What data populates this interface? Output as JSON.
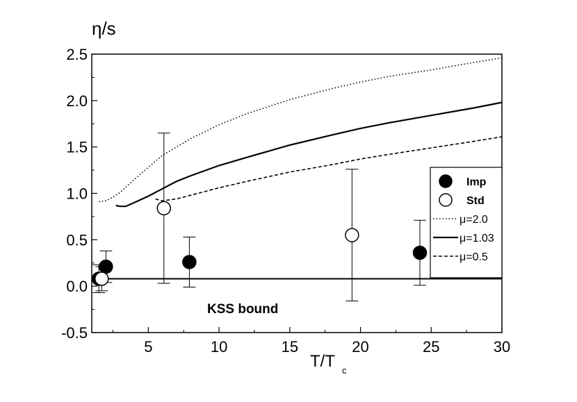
{
  "chart_data": {
    "type": "scatter",
    "xlabel": "T/T",
    "xlabel_sub": "c",
    "ylabel": "η/s",
    "xlim": [
      1,
      30
    ],
    "ylim": [
      -0.5,
      2.5
    ],
    "x_ticks": [
      "5",
      "10",
      "15",
      "20",
      "25",
      "30"
    ],
    "y_ticks": [
      "-0.5",
      "0.0",
      "0.5",
      "1.0",
      "1.5",
      "2.0",
      "2.5"
    ],
    "grid": false,
    "legend_placement": "right",
    "annotation": "KSS bound",
    "kss_bound_value": 0.08,
    "series": [
      {
        "name": "Imp",
        "kind": "points",
        "marker": "filled-circle",
        "points": [
          {
            "x": 1.5,
            "y": 0.08,
            "err": 0.15
          },
          {
            "x": 2.0,
            "y": 0.21,
            "err": 0.17
          },
          {
            "x": 7.9,
            "y": 0.26,
            "err": 0.27
          },
          {
            "x": 24.2,
            "y": 0.36,
            "err": 0.35
          }
        ]
      },
      {
        "name": "Std",
        "kind": "points",
        "marker": "open-circle",
        "points": [
          {
            "x": 1.7,
            "y": 0.08,
            "err": 0.13
          },
          {
            "x": 6.1,
            "y": 0.84,
            "err": 0.81
          },
          {
            "x": 19.4,
            "y": 0.55,
            "err": 0.71
          }
        ]
      },
      {
        "name": "μ=2.0",
        "kind": "line",
        "style": "dotted",
        "x": [
          1.5,
          2,
          2.5,
          3,
          4,
          5,
          6,
          8,
          10,
          12,
          15,
          18,
          20,
          22,
          25,
          28,
          30
        ],
        "y": [
          0.91,
          0.92,
          0.96,
          1.01,
          1.15,
          1.28,
          1.41,
          1.59,
          1.74,
          1.86,
          2.01,
          2.13,
          2.2,
          2.26,
          2.33,
          2.41,
          2.46
        ]
      },
      {
        "name": "μ=1.03",
        "kind": "line",
        "style": "solid",
        "x": [
          2.7,
          3.0,
          3.4,
          4,
          5,
          6,
          7,
          8,
          10,
          12,
          15,
          18,
          20,
          22,
          25,
          28,
          30
        ],
        "y": [
          0.87,
          0.86,
          0.86,
          0.9,
          0.97,
          1.05,
          1.13,
          1.19,
          1.3,
          1.39,
          1.52,
          1.63,
          1.7,
          1.76,
          1.84,
          1.92,
          1.98
        ]
      },
      {
        "name": "μ=0.5",
        "kind": "line",
        "style": "dashed",
        "x": [
          5.5,
          6,
          7,
          8,
          10,
          12,
          15,
          18,
          20,
          22,
          25,
          28,
          30
        ],
        "y": [
          0.94,
          0.92,
          0.94,
          0.98,
          1.06,
          1.13,
          1.23,
          1.31,
          1.37,
          1.42,
          1.49,
          1.56,
          1.61
        ]
      }
    ]
  }
}
